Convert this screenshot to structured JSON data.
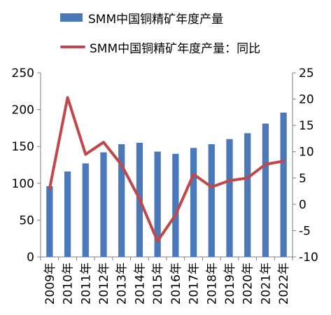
{
  "chart_data": {
    "type": "bar+line",
    "categories": [
      "2009年",
      "2010年",
      "2011年",
      "2012年",
      "2013年",
      "2014年",
      "2015年",
      "2016年",
      "2017年",
      "2018年",
      "2019年",
      "2020年",
      "2021年",
      "2022年"
    ],
    "series": [
      {
        "name": "SMM中国铜精矿年度产量",
        "type": "bar",
        "axis": "left",
        "color": "#4a78b8",
        "values": [
          96,
          116,
          127,
          142,
          153,
          155,
          143,
          140,
          148,
          153,
          160,
          168,
          181,
          196
        ]
      },
      {
        "name": "SMM中国铜精矿年度产量：同比",
        "type": "line",
        "axis": "right",
        "color": "#c0484a",
        "values": [
          3.0,
          20.3,
          9.5,
          11.8,
          7.5,
          1.0,
          -7.0,
          -2.0,
          5.7,
          3.3,
          4.5,
          5.0,
          7.6,
          8.2
        ]
      }
    ],
    "y_left": {
      "min": 0,
      "max": 250,
      "ticks": [
        0,
        50,
        100,
        150,
        200,
        250
      ]
    },
    "y_right": {
      "min": -10,
      "max": 25,
      "ticks": [
        -10,
        -5,
        0,
        5,
        10,
        15,
        20,
        25
      ]
    },
    "legend": "top-left",
    "grid": false
  }
}
